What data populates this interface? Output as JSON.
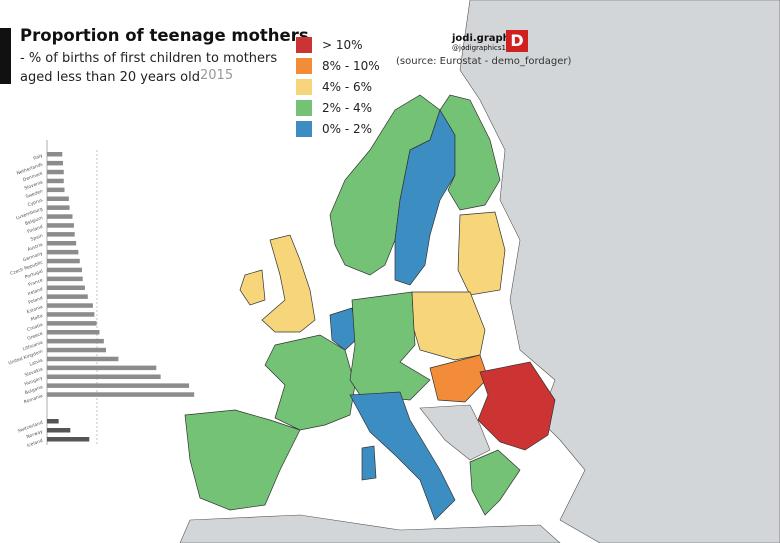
{
  "title": "Proportion of teenage mothers",
  "subtitle_line1": "- % of births of first children to mothers",
  "subtitle_line2": "aged less than 20 years old",
  "year": "2015",
  "legend": [
    {
      "label": "> 10%",
      "color": "#cc3333"
    },
    {
      "label": "8% - 10%",
      "color": "#f28c38"
    },
    {
      "label": "4% - 6%",
      "color": "#f7d57a"
    },
    {
      "label": "2% - 4%",
      "color": "#73c275"
    },
    {
      "label": "0% - 2%",
      "color": "#3c8dc2"
    }
  ],
  "brand": {
    "name": "jodi.graphics",
    "handle": "@jodigraphics15",
    "logo_letter": "D"
  },
  "source": "(source: Eurostat - demo_fordager)",
  "map_colors": {
    "sea": "#ffffff",
    "non_eu": "#d3d6d8",
    "border": "#333333"
  },
  "chart_data": {
    "type": "bar",
    "orientation": "horizontal",
    "categories": [
      "Italy",
      "Netherlands",
      "Denmark",
      "Slovenia",
      "Sweden",
      "Cyprus",
      "Luxembourg",
      "Belgium",
      "Finland",
      "Spain",
      "Austria",
      "Germany",
      "Czech Republic",
      "Portugal",
      "France",
      "Ireland",
      "Poland",
      "Estonia",
      "Malta",
      "Croatia",
      "Greece",
      "Lithuania",
      "United Kingdom",
      "Latvia",
      "Slovakia",
      "Hungary",
      "Bulgaria",
      "Romania"
    ],
    "values": [
      2.1,
      2.2,
      2.3,
      2.3,
      2.4,
      3.0,
      3.1,
      3.5,
      3.7,
      3.8,
      4.0,
      4.3,
      4.5,
      4.8,
      4.9,
      5.2,
      5.6,
      6.3,
      6.5,
      6.8,
      7.2,
      7.8,
      8.1,
      9.8,
      15.0,
      15.6,
      19.5,
      20.2
    ],
    "extra_categories": [
      "Switzerland",
      "Norway",
      "Iceland"
    ],
    "extra_values": [
      1.6,
      3.2,
      5.8
    ],
    "xlim": [
      0,
      21
    ]
  }
}
